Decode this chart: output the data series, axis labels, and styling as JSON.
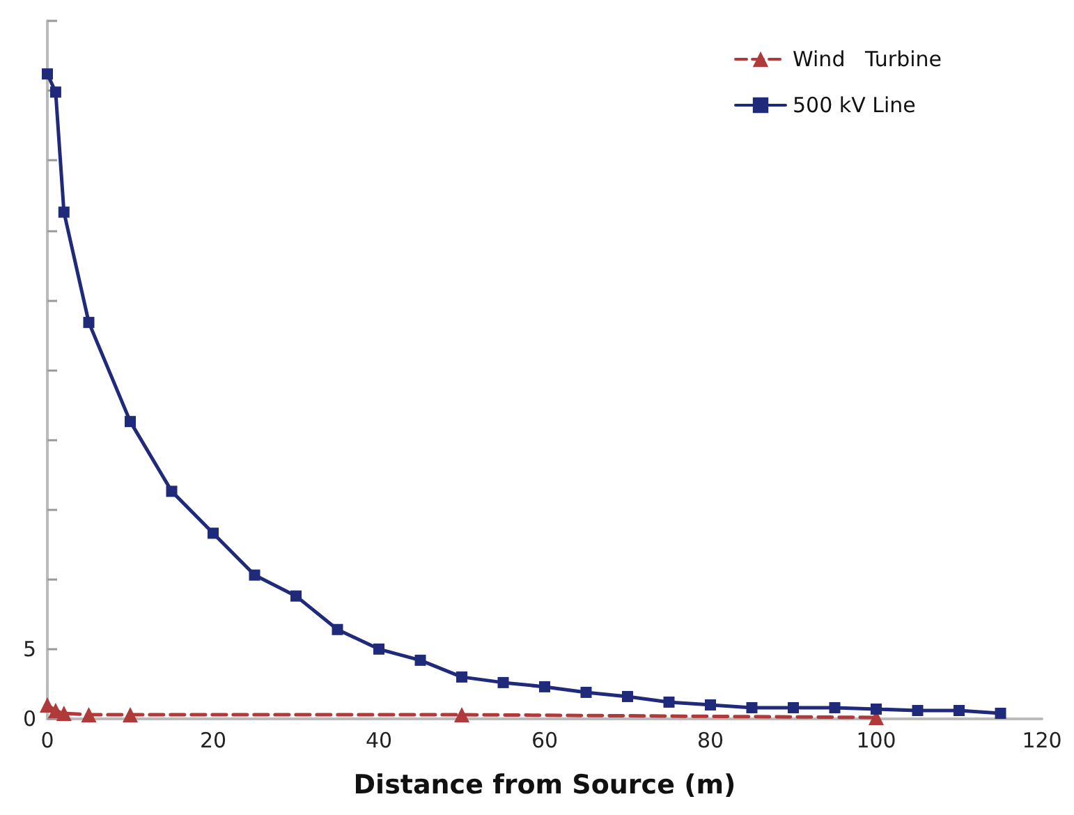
{
  "chart_data": {
    "type": "line",
    "xlabel": "Distance from Source (m)",
    "xlim": [
      0,
      120
    ],
    "xticks": [
      0,
      20,
      40,
      60,
      80,
      100,
      120
    ],
    "ylim": [
      0,
      50
    ],
    "yticks": [
      0,
      5,
      {
        "value": 10,
        "label": null
      },
      {
        "value": 15,
        "label": null
      },
      {
        "value": 20,
        "label": null
      },
      {
        "value": 25,
        "label": null
      },
      {
        "value": 30,
        "label": null
      },
      {
        "value": 35,
        "label": null
      },
      {
        "value": 40,
        "label": null
      },
      {
        "value": 45,
        "label": null
      },
      {
        "value": 50,
        "label": null
      }
    ],
    "grid": false,
    "legend": "top right",
    "series": [
      {
        "name": "Wind   Turbine",
        "color": "#b03a3a",
        "marker": "triangle",
        "line_style": "dashed",
        "x": [
          0,
          1,
          2,
          5,
          10,
          50,
          100
        ],
        "values": [
          1.0,
          0.6,
          0.4,
          0.3,
          0.3,
          0.3,
          0.1
        ]
      },
      {
        "name": "500 kV Line",
        "color": "#1f2a7a",
        "marker": "square",
        "line_style": "solid",
        "x": [
          0,
          1,
          2,
          5,
          10,
          15,
          20,
          25,
          30,
          35,
          40,
          45,
          50,
          55,
          60,
          65,
          70,
          75,
          80,
          85,
          90,
          95,
          100,
          105,
          110,
          115
        ],
        "values": [
          46.2,
          44.9,
          36.3,
          28.4,
          21.3,
          16.3,
          13.3,
          10.3,
          8.8,
          6.4,
          5.0,
          4.2,
          3.0,
          2.6,
          2.3,
          1.9,
          1.6,
          1.2,
          1.0,
          0.8,
          0.8,
          0.8,
          0.7,
          0.6,
          0.6,
          0.4
        ]
      }
    ]
  }
}
